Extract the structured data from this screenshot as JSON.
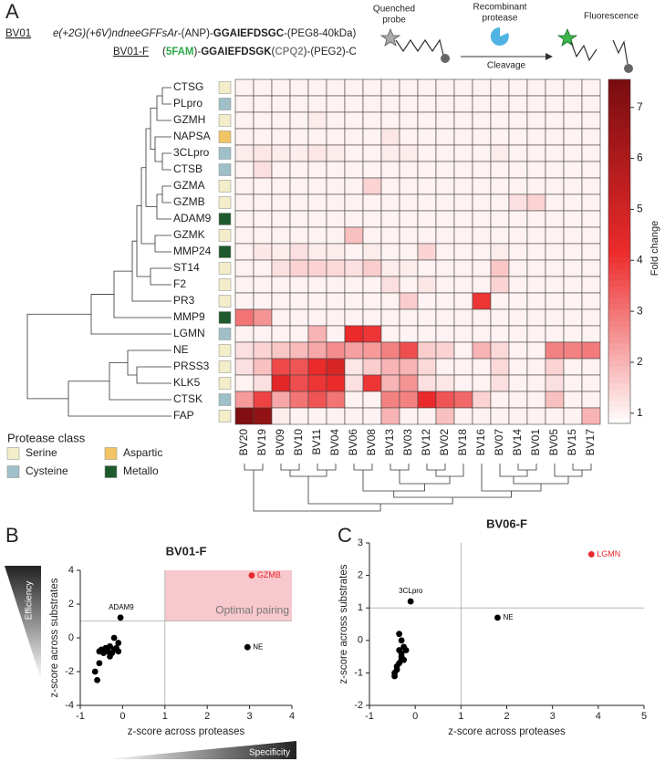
{
  "figure": {
    "panel_letters": [
      "A",
      "B",
      "C"
    ],
    "probe1": {
      "name": "BV01",
      "parts": [
        "e(+2G)(+6V)ndneeGFFsAr",
        "-(ANP)-",
        "GGAIEFDSGC",
        "-(PEG8-40kDa)"
      ]
    },
    "probe2": {
      "name": "BV01-F",
      "parts": [
        "(",
        "5FAM",
        ")-",
        "GGAIEFDSGK",
        "(",
        "CPQ2",
        ")-(PEG2)-C"
      ]
    },
    "schematic": {
      "quenched_probe": [
        "Quenched",
        "probe"
      ],
      "protease": [
        "Recombinant",
        "protease"
      ],
      "cleavage": "Cleavage",
      "fluorescence": "Fluorescence"
    },
    "efficiency": "Efficiency",
    "specificity": "Specificity"
  },
  "chart_data": [
    {
      "type": "heatmap",
      "rows": [
        "CTSG",
        "PLpro",
        "GZMH",
        "NAPSA",
        "3CLpro",
        "CTSB",
        "GZMA",
        "GZMB",
        "ADAM9",
        "GZMK",
        "MMP24",
        "ST14",
        "F2",
        "PR3",
        "MMP9",
        "LGMN",
        "NE",
        "PRSS3",
        "KLK5",
        "CTSK",
        "FAP"
      ],
      "row_class": [
        "Serine",
        "Cysteine",
        "Serine",
        "Aspartic",
        "Cysteine",
        "Cysteine",
        "Serine",
        "Serine",
        "Metallo",
        "Serine",
        "Metallo",
        "Serine",
        "Serine",
        "Serine",
        "Metallo",
        "Cysteine",
        "Serine",
        "Serine",
        "Serine",
        "Cysteine",
        "Serine"
      ],
      "columns": [
        "BV20",
        "BV19",
        "BV09",
        "BV10",
        "BV11",
        "BV04",
        "BV06",
        "BV08",
        "BV13",
        "BV03",
        "BV12",
        "BV02",
        "BV18",
        "BV16",
        "BV07",
        "BV14",
        "BV01",
        "BV05",
        "BV15",
        "BV17"
      ],
      "values": [
        [
          1,
          1,
          1,
          1,
          1,
          1,
          1,
          1,
          1,
          1,
          1,
          1,
          1,
          1,
          1,
          1,
          1,
          1,
          1,
          1
        ],
        [
          1,
          1,
          1,
          1,
          1,
          1,
          1,
          1,
          1,
          1,
          1,
          1,
          1,
          1,
          1,
          1,
          1,
          1,
          1,
          1
        ],
        [
          1,
          1,
          1,
          1,
          1.1,
          1,
          1,
          1,
          1,
          1,
          1,
          1,
          1,
          1,
          1,
          1,
          1,
          1,
          1,
          1
        ],
        [
          1,
          1,
          1,
          1,
          1,
          1,
          1,
          1,
          1.2,
          1,
          1,
          1,
          1,
          1,
          1,
          1,
          1,
          1,
          1,
          1
        ],
        [
          1.1,
          1.2,
          1.1,
          1.1,
          1.2,
          1.1,
          1,
          1,
          1.1,
          1.1,
          1,
          1,
          1,
          1,
          1.1,
          1,
          1,
          1,
          1,
          1
        ],
        [
          1,
          1.3,
          1,
          1,
          1,
          1,
          1,
          1,
          1,
          1,
          1,
          1,
          1,
          1,
          1,
          1,
          1,
          1,
          1,
          1
        ],
        [
          1,
          1,
          1,
          1,
          1,
          1,
          1,
          1.5,
          1,
          1,
          1,
          1,
          1,
          1,
          1,
          1,
          1,
          1,
          1,
          1
        ],
        [
          1,
          1,
          1,
          1,
          1,
          1,
          1,
          1,
          1,
          1,
          1,
          1,
          1,
          1,
          1,
          1.3,
          1.5,
          1,
          1,
          1
        ],
        [
          1,
          1,
          1,
          1,
          1,
          1,
          1,
          1,
          1,
          1,
          1,
          1,
          1,
          1,
          1,
          1,
          1,
          1,
          1,
          1
        ],
        [
          1,
          1,
          1,
          1,
          1,
          1,
          1.8,
          1,
          1,
          1,
          1,
          1,
          1,
          1,
          1,
          1,
          1,
          1,
          1,
          1
        ],
        [
          1,
          1.2,
          1.1,
          1.3,
          1.1,
          1.1,
          1,
          1.1,
          1,
          1,
          1.5,
          1,
          1,
          1,
          1.1,
          1,
          1,
          1,
          1,
          1
        ],
        [
          1,
          1,
          1.3,
          1.5,
          1.5,
          1.4,
          1.3,
          1.6,
          1.1,
          1.1,
          1,
          1,
          1,
          1,
          1.7,
          1,
          1,
          1,
          1,
          1
        ],
        [
          1,
          1,
          1,
          1,
          1,
          1,
          1,
          1,
          1.3,
          1,
          1.2,
          1,
          1,
          1,
          1.5,
          1,
          1,
          1,
          1,
          1
        ],
        [
          1,
          1,
          1,
          1,
          1,
          1,
          1,
          1,
          1,
          1.6,
          1,
          1,
          1,
          4,
          1,
          1,
          1,
          1,
          1,
          1
        ],
        [
          3,
          2.5,
          1,
          1,
          1,
          1,
          1,
          1,
          1,
          1,
          1,
          1,
          1,
          1,
          1,
          1,
          1,
          1,
          1,
          1
        ],
        [
          1,
          1,
          1,
          1,
          2,
          1,
          4.2,
          4,
          1,
          1,
          1,
          1,
          1,
          1,
          1,
          1,
          1,
          1,
          1,
          1
        ],
        [
          1.3,
          1.5,
          1.7,
          1.9,
          2.2,
          2.6,
          2.3,
          2.4,
          2.8,
          3.6,
          1.6,
          1.5,
          1,
          2,
          1.4,
          1,
          1,
          2.8,
          2.8,
          2.9
        ],
        [
          1.3,
          1.8,
          3.7,
          3.5,
          4.2,
          4.8,
          1.2,
          1.6,
          2,
          2,
          1.4,
          1,
          1,
          1,
          1.4,
          1,
          1,
          1.5,
          1,
          1
        ],
        [
          1,
          1.3,
          4.5,
          3.6,
          4,
          4.2,
          1.3,
          4,
          2,
          2.5,
          1.3,
          1.2,
          1,
          1,
          1.3,
          1,
          1,
          1.3,
          1,
          1
        ],
        [
          2.4,
          3.8,
          2.2,
          3,
          3.5,
          3,
          1,
          1,
          2.8,
          2.8,
          4.2,
          3.5,
          3.2,
          1.5,
          1,
          1,
          1,
          1.8,
          1,
          1
        ],
        [
          7.3,
          6.8,
          1.1,
          1,
          1,
          1,
          1,
          1,
          2,
          1,
          1,
          1.8,
          1,
          1,
          1,
          1,
          1,
          1,
          1,
          2
        ]
      ],
      "zlim": [
        0.8,
        7.55
      ],
      "zticks": [
        1,
        2,
        3,
        4,
        5,
        6,
        7
      ],
      "colormap": [
        "#ffffff",
        "#ec2a2b",
        "#780d10"
      ],
      "colorbar_label": "Fold change",
      "legend_title": "Protease class",
      "classes": [
        {
          "name": "Serine",
          "color": "#f3edc9"
        },
        {
          "name": "Aspartic",
          "color": "#f1c464"
        },
        {
          "name": "Cysteine",
          "color": "#a0c0c9"
        },
        {
          "name": "Metallo",
          "color": "#1f5a2e"
        }
      ]
    },
    {
      "type": "scatter",
      "title": "BV01-F",
      "x_label": "z-score across proteases",
      "y_label": "z-score across substrates",
      "xlim": [
        -1,
        4
      ],
      "ylim": [
        -4,
        4
      ],
      "xticks": [
        -1,
        0,
        1,
        2,
        3,
        4
      ],
      "yticks": [
        -4,
        -2,
        0,
        2,
        4
      ],
      "ref_x": 1,
      "ref_y": 1,
      "region": {
        "x": [
          1,
          4
        ],
        "y": [
          1,
          4
        ],
        "color": "#f4b6bc",
        "label": "Optimal pairing"
      },
      "series": [
        {
          "color": "#e8282d",
          "x": [
            3.05
          ],
          "y": [
            3.7
          ],
          "labels": [
            "GZMB"
          ]
        },
        {
          "color": "#000000",
          "x": [
            -0.05,
            2.95,
            -0.6,
            -0.65,
            -0.55,
            -0.5,
            -0.45,
            -0.4,
            -0.35,
            -0.3,
            -0.25,
            -0.2,
            -0.15,
            -0.1,
            -0.1,
            -0.2,
            -0.55,
            -0.3
          ],
          "y": [
            1.2,
            -0.55,
            -2.5,
            -2.0,
            -1.5,
            -0.7,
            -0.9,
            -0.6,
            -0.8,
            -0.5,
            -0.9,
            -0.7,
            -0.6,
            -0.3,
            -0.8,
            0.0,
            -0.8,
            -1.1
          ],
          "labels": [
            "ADAM9",
            "NE",
            null,
            null,
            null,
            null,
            null,
            null,
            null,
            null,
            null,
            null,
            null,
            null,
            null,
            null,
            null,
            null
          ]
        }
      ]
    },
    {
      "type": "scatter",
      "title": "BV06-F",
      "x_label": "z-score across proteases",
      "y_label": "z-score across substrates",
      "xlim": [
        -1,
        5
      ],
      "ylim": [
        -2,
        3
      ],
      "xticks": [
        -1,
        0,
        1,
        2,
        3,
        4,
        5
      ],
      "yticks": [
        -2,
        -1,
        0,
        1,
        2,
        3
      ],
      "ref_x": 1,
      "ref_y": 1,
      "series": [
        {
          "color": "#e8282d",
          "x": [
            3.85
          ],
          "y": [
            2.65
          ],
          "labels": [
            "LGMN"
          ]
        },
        {
          "color": "#000000",
          "x": [
            -0.1,
            1.8,
            -0.45,
            -0.45,
            -0.4,
            -0.35,
            -0.3,
            -0.3,
            -0.35,
            -0.25,
            -0.3,
            -0.35,
            -0.2,
            -0.3,
            -0.4,
            -0.25
          ],
          "y": [
            1.2,
            0.7,
            -1.1,
            -1.0,
            -0.8,
            -0.7,
            -0.6,
            -0.4,
            -0.3,
            -0.2,
            0.0,
            0.2,
            -0.3,
            -0.5,
            -0.9,
            -0.6
          ],
          "labels": [
            "3CLpro",
            "NE",
            null,
            null,
            null,
            null,
            null,
            null,
            null,
            null,
            null,
            null,
            null,
            null,
            null,
            null
          ]
        }
      ]
    }
  ]
}
